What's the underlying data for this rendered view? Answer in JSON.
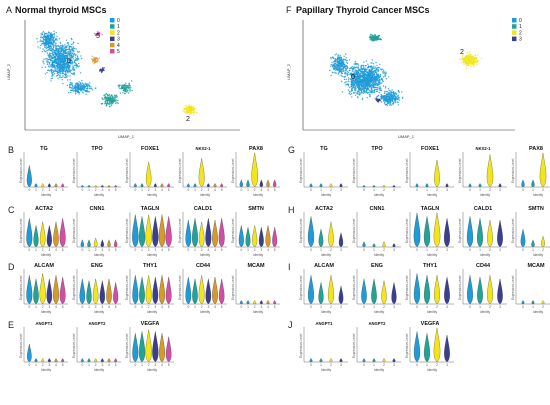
{
  "colors": {
    "c0": "#1f9bd7",
    "c1": "#1e8f7e",
    "c2": "#f2e51c",
    "c3": "#3b3f8f",
    "c4": "#d49a2a",
    "c5": "#cf4fa6",
    "palette_normal": [
      "#1f9bd7",
      "#21a39a",
      "#f2e51c",
      "#3b3f8f",
      "#d49a2a",
      "#cf4fa6"
    ],
    "palette_ptc": [
      "#1f9bd7",
      "#21a39a",
      "#f2e51c",
      "#3b3f8f"
    ]
  },
  "left": {
    "panel_a": {
      "letter": "A",
      "title": "Normal thyroid MSCs",
      "xlabel": "UMAP_1",
      "ylabel": "UMAP_2",
      "legend": [
        "0",
        "1",
        "2",
        "3",
        "4",
        "5"
      ],
      "cluster_labels": [
        "0",
        "1",
        "2",
        "3",
        "4",
        "5"
      ]
    },
    "rows": [
      {
        "letter": "B",
        "genes": [
          "TG",
          "TPO",
          "FOXE1",
          "NKX2-1",
          "PAX8"
        ],
        "ylabel": "Expression Level",
        "xlabel": "Identity"
      },
      {
        "letter": "C",
        "genes": [
          "ACTA2",
          "CNN1",
          "TAGLN",
          "CALD1",
          "SMTN"
        ],
        "ylabel": "Expression Level",
        "xlabel": "Identity"
      },
      {
        "letter": "D",
        "genes": [
          "ALCAM",
          "ENG",
          "THY1",
          "CD44",
          "MCAM"
        ],
        "ylabel": "Expression Level",
        "xlabel": "Identity"
      },
      {
        "letter": "E",
        "genes": [
          "ANGPT1",
          "ANGPT2",
          "VEGFA"
        ],
        "ylabel": "Expression Level",
        "xlabel": "Identity"
      }
    ],
    "identities": [
      "0",
      "1",
      "2",
      "3",
      "4",
      "5"
    ]
  },
  "right": {
    "panel_f": {
      "letter": "F",
      "title": "Papillary Thyroid Cancer MSCs",
      "xlabel": "UMAP_1",
      "ylabel": "UMAP_2",
      "legend": [
        "0",
        "1",
        "2",
        "3"
      ],
      "cluster_labels": [
        "0",
        "1",
        "2",
        "3"
      ]
    },
    "rows": [
      {
        "letter": "G",
        "genes": [
          "TG",
          "TPO",
          "FOXE1",
          "NKX2-1",
          "PAX8"
        ],
        "ylabel": "Expression Level",
        "xlabel": "Identity"
      },
      {
        "letter": "H",
        "genes": [
          "ACTA2",
          "CNN1",
          "TAGLN",
          "CALD1",
          "SMTN"
        ],
        "ylabel": "Expression Level",
        "xlabel": "Identity"
      },
      {
        "letter": "I",
        "genes": [
          "ALCAM",
          "ENG",
          "THY1",
          "CD44",
          "MCAM"
        ],
        "ylabel": "Expression Level",
        "xlabel": "Identity"
      },
      {
        "letter": "J",
        "genes": [
          "ANGPT1",
          "ANGPT2",
          "VEGFA"
        ],
        "ylabel": "Expression Level",
        "xlabel": "Identity"
      }
    ],
    "identities": [
      "0",
      "1",
      "2",
      "3"
    ]
  }
}
